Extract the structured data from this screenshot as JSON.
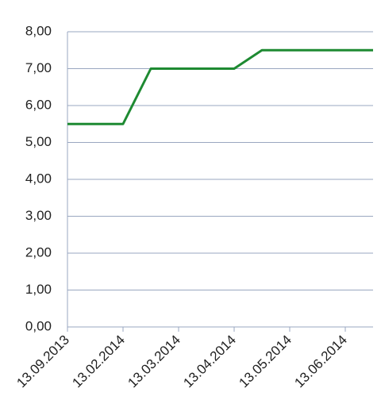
{
  "chart_data": {
    "type": "line",
    "categories": [
      "13.09.2013",
      null,
      "13.02.2014",
      null,
      "13.03.2014",
      null,
      "13.04.2014",
      null,
      "13.05.2014",
      null,
      "13.06.2014",
      null
    ],
    "series": [
      {
        "color": "#1e8a32",
        "values": [
          5.5,
          5.5,
          5.5,
          7.0,
          7.0,
          7.0,
          7.0,
          7.5,
          7.5,
          7.5,
          7.5,
          7.5
        ]
      }
    ],
    "ylim": [
      0,
      8
    ],
    "yticks": [
      {
        "value": 0,
        "label": "0,00"
      },
      {
        "value": 1,
        "label": "1,00"
      },
      {
        "value": 2,
        "label": "2,00"
      },
      {
        "value": 3,
        "label": "3,00"
      },
      {
        "value": 4,
        "label": "4,00"
      },
      {
        "value": 5,
        "label": "5,00"
      },
      {
        "value": 6,
        "label": "6,00"
      },
      {
        "value": 7,
        "label": "7,00"
      },
      {
        "value": 8,
        "label": "8,00"
      }
    ],
    "grid": true
  }
}
